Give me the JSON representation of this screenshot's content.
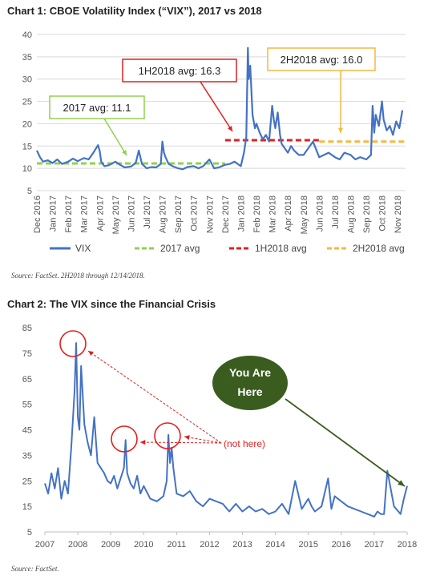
{
  "colors": {
    "vix": "#4472C4",
    "avg2017": "#92D050",
    "avg1h2018": "#E02020",
    "avg2h2018": "#F4B942",
    "circle": "#E02020",
    "arrow_red": "#E02020",
    "here_fill": "#3A5D1F",
    "here_arrow": "#3A5D1F"
  },
  "chart1": {
    "title": "Chart 1: CBOE Volatility Index (“VIX”), 2017 vs 2018",
    "source": "Source: FactSet. 2H2018 through 12/14/2018.",
    "legend": [
      "VIX",
      "2017 avg",
      "1H2018 avg",
      "2H2018 avg"
    ],
    "annotations": {
      "avg2017": "2017 avg: 11.1",
      "avg1h2018": "1H2018 avg: 16.3",
      "avg2h2018": "2H2018 avg: 16.0"
    }
  },
  "chart2": {
    "title": "Chart 2: The VIX since the Financial Crisis",
    "source": "Source: FactSet.",
    "annotation_not_here": "(not here)",
    "annotation_you_are": "You Are",
    "annotation_here": "Here"
  },
  "chart_data": [
    {
      "type": "line",
      "title": "Chart 1: CBOE Volatility Index (“VIX”), 2017 vs 2018",
      "x_unit": "months since Dec 2016",
      "xlim": [
        0,
        23.5
      ],
      "ylim": [
        5,
        40
      ],
      "yticks": [
        5,
        10,
        15,
        20,
        25,
        30,
        35,
        40
      ],
      "xtick_labels": [
        "Dec 2016",
        "Jan 2017",
        "Feb 2017",
        "Mar 2017",
        "Apr 2017",
        "May 2017",
        "Jun 2017",
        "Jul 2017",
        "Aug 2017",
        "Sep 2017",
        "Oct 2017",
        "Nov 2017",
        "Dec 2017",
        "Jan 2018",
        "Feb 2018",
        "Mar 2018",
        "Apr 2018",
        "May 2018",
        "Jun 2018",
        "Jul 2018",
        "Aug 2018",
        "Sep 2018",
        "Oct 2018",
        "Nov 2018"
      ],
      "legend_position": "bottom",
      "grid": "horizontal",
      "series": [
        {
          "name": "VIX",
          "x": [
            0,
            0.2,
            0.4,
            0.7,
            1.0,
            1.3,
            1.6,
            2.0,
            2.3,
            2.6,
            3.0,
            3.3,
            3.6,
            3.9,
            4.0,
            4.1,
            4.3,
            4.6,
            5.0,
            5.3,
            5.6,
            6.0,
            6.3,
            6.5,
            6.7,
            7.0,
            7.3,
            7.6,
            7.9,
            8.0,
            8.1,
            8.2,
            8.4,
            8.7,
            9.0,
            9.3,
            9.6,
            10.0,
            10.3,
            10.6,
            11.0,
            11.3,
            11.6,
            12.0,
            12.3,
            12.6,
            13.0,
            13.2,
            13.35,
            13.45,
            13.5,
            13.6,
            13.75,
            13.9,
            14.0,
            14.2,
            14.4,
            14.6,
            14.8,
            15.0,
            15.1,
            15.2,
            15.35,
            15.5,
            15.6,
            15.8,
            16.0,
            16.2,
            16.4,
            16.7,
            17.0,
            17.3,
            17.6,
            18.0,
            18.3,
            18.6,
            19.0,
            19.3,
            19.6,
            20.0,
            20.3,
            20.6,
            21.0,
            21.3,
            21.4,
            21.5,
            21.6,
            21.8,
            22.0,
            22.1,
            22.3,
            22.5,
            22.7,
            22.9,
            23.1,
            23.3
          ],
          "y": [
            14.0,
            12.5,
            11.5,
            11.8,
            11.2,
            12.0,
            11.0,
            11.5,
            12.2,
            11.6,
            12.3,
            12.0,
            13.5,
            15.2,
            14.0,
            11.5,
            10.5,
            10.7,
            11.5,
            10.8,
            10.2,
            10.4,
            11.2,
            14.0,
            11.0,
            10.0,
            10.3,
            10.2,
            11.0,
            16.0,
            13.5,
            12.5,
            11.0,
            10.4,
            10.0,
            9.8,
            10.3,
            10.5,
            10.0,
            10.5,
            12.0,
            10.0,
            10.2,
            10.8,
            11.0,
            11.5,
            10.5,
            13.5,
            17.0,
            37.0,
            30.0,
            33.0,
            22.0,
            19.0,
            20.0,
            18.0,
            16.5,
            17.5,
            16.0,
            24.0,
            21.0,
            19.0,
            22.5,
            17.5,
            15.5,
            14.5,
            13.5,
            15.0,
            14.0,
            13.0,
            13.0,
            14.5,
            16.0,
            12.5,
            13.0,
            13.5,
            12.5,
            12.0,
            13.5,
            13.0,
            12.0,
            12.5,
            12.0,
            13.0,
            24.0,
            18.0,
            22.0,
            19.5,
            25.0,
            21.0,
            18.5,
            19.5,
            17.5,
            20.5,
            19.0,
            23.0
          ]
        },
        {
          "name": "2017 avg",
          "x": [
            0,
            12
          ],
          "y": [
            11.1,
            11.1
          ]
        },
        {
          "name": "1H2018 avg",
          "x": [
            12,
            18
          ],
          "y": [
            16.3,
            16.3
          ]
        },
        {
          "name": "2H2018 avg",
          "x": [
            18,
            23.5
          ],
          "y": [
            16.0,
            16.0
          ]
        }
      ]
    },
    {
      "type": "line",
      "title": "Chart 2: The VIX since the Financial Crisis",
      "xlim": [
        2007,
        2018
      ],
      "ylim": [
        5,
        85
      ],
      "yticks": [
        5,
        15,
        25,
        35,
        45,
        55,
        65,
        75,
        85
      ],
      "xticks": [
        2007,
        2008,
        2009,
        2010,
        2011,
        2012,
        2013,
        2014,
        2015,
        2016,
        2017,
        2018
      ],
      "grid": "none",
      "series": [
        {
          "name": "VIX",
          "x": [
            2007.0,
            2007.1,
            2007.2,
            2007.3,
            2007.4,
            2007.5,
            2007.6,
            2007.7,
            2007.8,
            2007.9,
            2007.95,
            2008.0,
            2008.05,
            2008.1,
            2008.2,
            2008.3,
            2008.4,
            2008.5,
            2008.6,
            2008.7,
            2008.8,
            2008.9,
            2009.0,
            2009.1,
            2009.2,
            2009.3,
            2009.4,
            2009.45,
            2009.5,
            2009.6,
            2009.7,
            2009.8,
            2009.9,
            2010.0,
            2010.2,
            2010.4,
            2010.6,
            2010.7,
            2010.75,
            2010.8,
            2010.85,
            2010.9,
            2011.0,
            2011.2,
            2011.4,
            2011.6,
            2011.8,
            2012.0,
            2012.2,
            2012.4,
            2012.6,
            2012.8,
            2013.0,
            2013.2,
            2013.4,
            2013.6,
            2013.8,
            2014.0,
            2014.2,
            2014.4,
            2014.6,
            2014.8,
            2015.0,
            2015.1,
            2015.2,
            2015.4,
            2015.6,
            2015.7,
            2015.8,
            2016.0,
            2016.2,
            2016.4,
            2016.6,
            2016.8,
            2017.0,
            2017.1,
            2017.2,
            2017.3,
            2017.4,
            2017.6,
            2017.8,
            2017.9,
            2018.0
          ],
          "y": [
            24,
            20,
            28,
            22,
            30,
            18,
            25,
            20,
            38,
            60,
            79,
            50,
            45,
            70,
            47,
            40,
            35,
            50,
            32,
            30,
            28,
            25,
            24,
            27,
            22,
            26,
            30,
            41,
            28,
            24,
            22,
            27,
            20,
            23,
            18,
            17,
            19,
            25,
            43,
            32,
            38,
            30,
            20,
            19,
            21,
            17,
            15,
            18,
            17,
            16,
            13,
            16,
            13,
            15,
            13,
            14,
            12,
            13,
            16,
            12,
            25,
            14,
            18,
            15,
            13,
            15,
            26,
            14,
            19,
            17,
            15,
            14,
            13,
            12,
            11,
            13,
            12,
            12,
            29,
            15,
            12,
            18,
            23
          ]
        }
      ]
    }
  ]
}
